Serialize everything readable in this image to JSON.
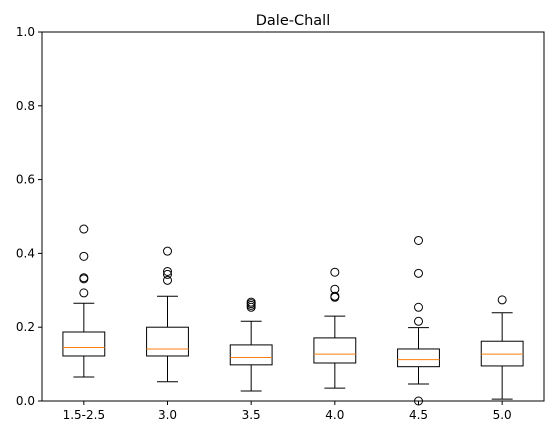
{
  "chart_data": {
    "type": "box",
    "title": "Dale-Chall",
    "xlabel": "",
    "ylabel": "",
    "ylim": [
      0,
      1
    ],
    "yticks": [
      "0.0",
      "0.2",
      "0.4",
      "0.6",
      "0.8",
      "1.0"
    ],
    "grid": false,
    "colors": {
      "box": "#000000",
      "median": "#ff7f0e",
      "background": "#ffffff"
    },
    "categories": [
      "1.5-2.5",
      "3.0",
      "3.5",
      "4.0",
      "4.5",
      "5.0"
    ],
    "boxes": [
      {
        "whisker_low": 0.065,
        "q1": 0.122,
        "median": 0.145,
        "q3": 0.187,
        "whisker_high": 0.265,
        "outliers": [
          0.293,
          0.331,
          0.334,
          0.392,
          0.466
        ]
      },
      {
        "whisker_low": 0.052,
        "q1": 0.122,
        "median": 0.141,
        "q3": 0.2,
        "whisker_high": 0.284,
        "outliers": [
          0.327,
          0.343,
          0.351,
          0.406
        ]
      },
      {
        "whisker_low": 0.027,
        "q1": 0.098,
        "median": 0.118,
        "q3": 0.152,
        "whisker_high": 0.216,
        "outliers": [
          0.254,
          0.259,
          0.264,
          0.268
        ]
      },
      {
        "whisker_low": 0.035,
        "q1": 0.103,
        "median": 0.127,
        "q3": 0.171,
        "whisker_high": 0.23,
        "outliers": [
          0.281,
          0.284,
          0.303,
          0.349
        ]
      },
      {
        "whisker_low": 0.046,
        "q1": 0.093,
        "median": 0.112,
        "q3": 0.141,
        "whisker_high": 0.199,
        "outliers": [
          0.0,
          0.216,
          0.254,
          0.346,
          0.435
        ]
      },
      {
        "whisker_low": 0.005,
        "q1": 0.095,
        "median": 0.127,
        "q3": 0.162,
        "whisker_high": 0.239,
        "outliers": [
          0.274
        ]
      }
    ]
  }
}
